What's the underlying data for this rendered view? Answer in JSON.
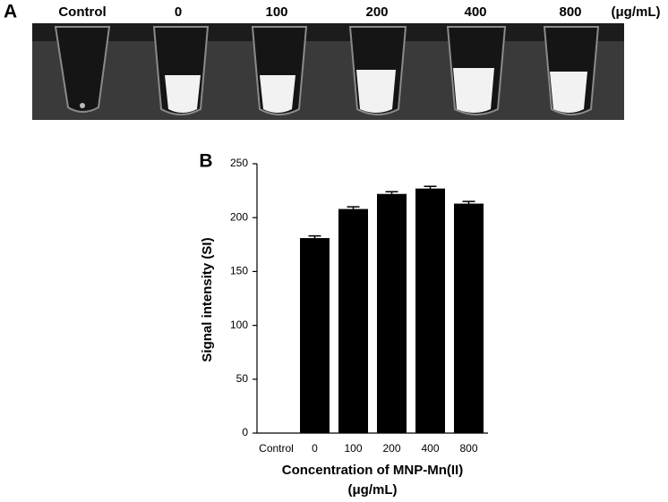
{
  "panel_a": {
    "label": "A",
    "labels": [
      "Control",
      "0",
      "100",
      "200",
      "400",
      "800"
    ],
    "unit": "(μg/mL)"
  },
  "chart_data": {
    "type": "bar",
    "panel_label": "B",
    "y_label": "Signal intensity (SI)",
    "x_label": "Concentration of MNP-Mn(II)",
    "x_label_unit": "(μg/mL)",
    "categories": [
      "Control",
      "0",
      "100",
      "200",
      "400",
      "800"
    ],
    "values": [
      null,
      181,
      208,
      222,
      227,
      213
    ],
    "errors": [
      null,
      2,
      2,
      2,
      2,
      2
    ],
    "color": "#000000",
    "ylim": [
      0,
      250
    ],
    "yticks": [
      0,
      50,
      100,
      150,
      200,
      250
    ]
  }
}
